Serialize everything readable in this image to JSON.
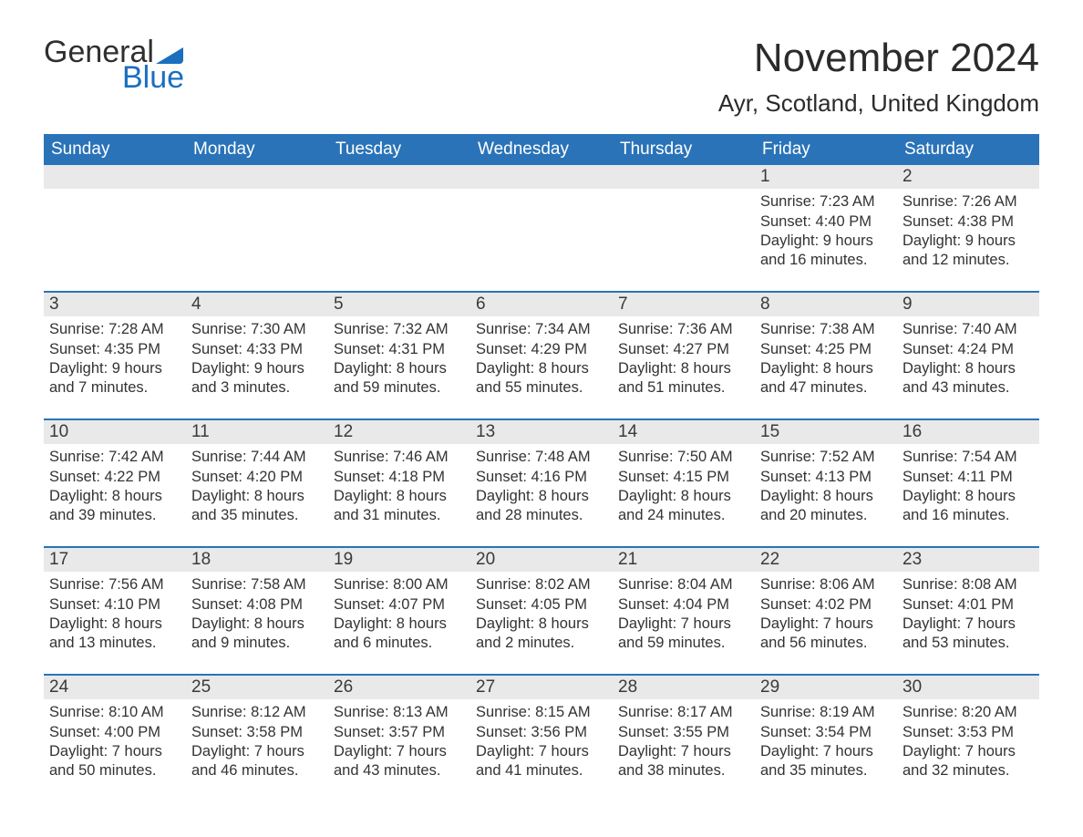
{
  "brand": {
    "text1": "General",
    "text2": "Blue",
    "accent_color": "#1a6fbf"
  },
  "title": "November 2024",
  "location": "Ayr, Scotland, United Kingdom",
  "colors": {
    "header_bg": "#2a73b8",
    "header_text": "#ffffff",
    "row_divider": "#2a73b8",
    "daynum_bg": "#e9e9e9",
    "text": "#333333",
    "page_bg": "#ffffff"
  },
  "fonts": {
    "title_size_pt": 33,
    "location_size_pt": 20,
    "dow_size_pt": 14,
    "daynum_size_pt": 14,
    "body_size_pt": 12
  },
  "days_of_week": [
    "Sunday",
    "Monday",
    "Tuesday",
    "Wednesday",
    "Thursday",
    "Friday",
    "Saturday"
  ],
  "weeks": [
    [
      {
        "blank": true
      },
      {
        "blank": true
      },
      {
        "blank": true
      },
      {
        "blank": true
      },
      {
        "blank": true
      },
      {
        "day": "1",
        "sunrise": "Sunrise: 7:23 AM",
        "sunset": "Sunset: 4:40 PM",
        "daylight1": "Daylight: 9 hours",
        "daylight2": "and 16 minutes."
      },
      {
        "day": "2",
        "sunrise": "Sunrise: 7:26 AM",
        "sunset": "Sunset: 4:38 PM",
        "daylight1": "Daylight: 9 hours",
        "daylight2": "and 12 minutes."
      }
    ],
    [
      {
        "day": "3",
        "sunrise": "Sunrise: 7:28 AM",
        "sunset": "Sunset: 4:35 PM",
        "daylight1": "Daylight: 9 hours",
        "daylight2": "and 7 minutes."
      },
      {
        "day": "4",
        "sunrise": "Sunrise: 7:30 AM",
        "sunset": "Sunset: 4:33 PM",
        "daylight1": "Daylight: 9 hours",
        "daylight2": "and 3 minutes."
      },
      {
        "day": "5",
        "sunrise": "Sunrise: 7:32 AM",
        "sunset": "Sunset: 4:31 PM",
        "daylight1": "Daylight: 8 hours",
        "daylight2": "and 59 minutes."
      },
      {
        "day": "6",
        "sunrise": "Sunrise: 7:34 AM",
        "sunset": "Sunset: 4:29 PM",
        "daylight1": "Daylight: 8 hours",
        "daylight2": "and 55 minutes."
      },
      {
        "day": "7",
        "sunrise": "Sunrise: 7:36 AM",
        "sunset": "Sunset: 4:27 PM",
        "daylight1": "Daylight: 8 hours",
        "daylight2": "and 51 minutes."
      },
      {
        "day": "8",
        "sunrise": "Sunrise: 7:38 AM",
        "sunset": "Sunset: 4:25 PM",
        "daylight1": "Daylight: 8 hours",
        "daylight2": "and 47 minutes."
      },
      {
        "day": "9",
        "sunrise": "Sunrise: 7:40 AM",
        "sunset": "Sunset: 4:24 PM",
        "daylight1": "Daylight: 8 hours",
        "daylight2": "and 43 minutes."
      }
    ],
    [
      {
        "day": "10",
        "sunrise": "Sunrise: 7:42 AM",
        "sunset": "Sunset: 4:22 PM",
        "daylight1": "Daylight: 8 hours",
        "daylight2": "and 39 minutes."
      },
      {
        "day": "11",
        "sunrise": "Sunrise: 7:44 AM",
        "sunset": "Sunset: 4:20 PM",
        "daylight1": "Daylight: 8 hours",
        "daylight2": "and 35 minutes."
      },
      {
        "day": "12",
        "sunrise": "Sunrise: 7:46 AM",
        "sunset": "Sunset: 4:18 PM",
        "daylight1": "Daylight: 8 hours",
        "daylight2": "and 31 minutes."
      },
      {
        "day": "13",
        "sunrise": "Sunrise: 7:48 AM",
        "sunset": "Sunset: 4:16 PM",
        "daylight1": "Daylight: 8 hours",
        "daylight2": "and 28 minutes."
      },
      {
        "day": "14",
        "sunrise": "Sunrise: 7:50 AM",
        "sunset": "Sunset: 4:15 PM",
        "daylight1": "Daylight: 8 hours",
        "daylight2": "and 24 minutes."
      },
      {
        "day": "15",
        "sunrise": "Sunrise: 7:52 AM",
        "sunset": "Sunset: 4:13 PM",
        "daylight1": "Daylight: 8 hours",
        "daylight2": "and 20 minutes."
      },
      {
        "day": "16",
        "sunrise": "Sunrise: 7:54 AM",
        "sunset": "Sunset: 4:11 PM",
        "daylight1": "Daylight: 8 hours",
        "daylight2": "and 16 minutes."
      }
    ],
    [
      {
        "day": "17",
        "sunrise": "Sunrise: 7:56 AM",
        "sunset": "Sunset: 4:10 PM",
        "daylight1": "Daylight: 8 hours",
        "daylight2": "and 13 minutes."
      },
      {
        "day": "18",
        "sunrise": "Sunrise: 7:58 AM",
        "sunset": "Sunset: 4:08 PM",
        "daylight1": "Daylight: 8 hours",
        "daylight2": "and 9 minutes."
      },
      {
        "day": "19",
        "sunrise": "Sunrise: 8:00 AM",
        "sunset": "Sunset: 4:07 PM",
        "daylight1": "Daylight: 8 hours",
        "daylight2": "and 6 minutes."
      },
      {
        "day": "20",
        "sunrise": "Sunrise: 8:02 AM",
        "sunset": "Sunset: 4:05 PM",
        "daylight1": "Daylight: 8 hours",
        "daylight2": "and 2 minutes."
      },
      {
        "day": "21",
        "sunrise": "Sunrise: 8:04 AM",
        "sunset": "Sunset: 4:04 PM",
        "daylight1": "Daylight: 7 hours",
        "daylight2": "and 59 minutes."
      },
      {
        "day": "22",
        "sunrise": "Sunrise: 8:06 AM",
        "sunset": "Sunset: 4:02 PM",
        "daylight1": "Daylight: 7 hours",
        "daylight2": "and 56 minutes."
      },
      {
        "day": "23",
        "sunrise": "Sunrise: 8:08 AM",
        "sunset": "Sunset: 4:01 PM",
        "daylight1": "Daylight: 7 hours",
        "daylight2": "and 53 minutes."
      }
    ],
    [
      {
        "day": "24",
        "sunrise": "Sunrise: 8:10 AM",
        "sunset": "Sunset: 4:00 PM",
        "daylight1": "Daylight: 7 hours",
        "daylight2": "and 50 minutes."
      },
      {
        "day": "25",
        "sunrise": "Sunrise: 8:12 AM",
        "sunset": "Sunset: 3:58 PM",
        "daylight1": "Daylight: 7 hours",
        "daylight2": "and 46 minutes."
      },
      {
        "day": "26",
        "sunrise": "Sunrise: 8:13 AM",
        "sunset": "Sunset: 3:57 PM",
        "daylight1": "Daylight: 7 hours",
        "daylight2": "and 43 minutes."
      },
      {
        "day": "27",
        "sunrise": "Sunrise: 8:15 AM",
        "sunset": "Sunset: 3:56 PM",
        "daylight1": "Daylight: 7 hours",
        "daylight2": "and 41 minutes."
      },
      {
        "day": "28",
        "sunrise": "Sunrise: 8:17 AM",
        "sunset": "Sunset: 3:55 PM",
        "daylight1": "Daylight: 7 hours",
        "daylight2": "and 38 minutes."
      },
      {
        "day": "29",
        "sunrise": "Sunrise: 8:19 AM",
        "sunset": "Sunset: 3:54 PM",
        "daylight1": "Daylight: 7 hours",
        "daylight2": "and 35 minutes."
      },
      {
        "day": "30",
        "sunrise": "Sunrise: 8:20 AM",
        "sunset": "Sunset: 3:53 PM",
        "daylight1": "Daylight: 7 hours",
        "daylight2": "and 32 minutes."
      }
    ]
  ]
}
